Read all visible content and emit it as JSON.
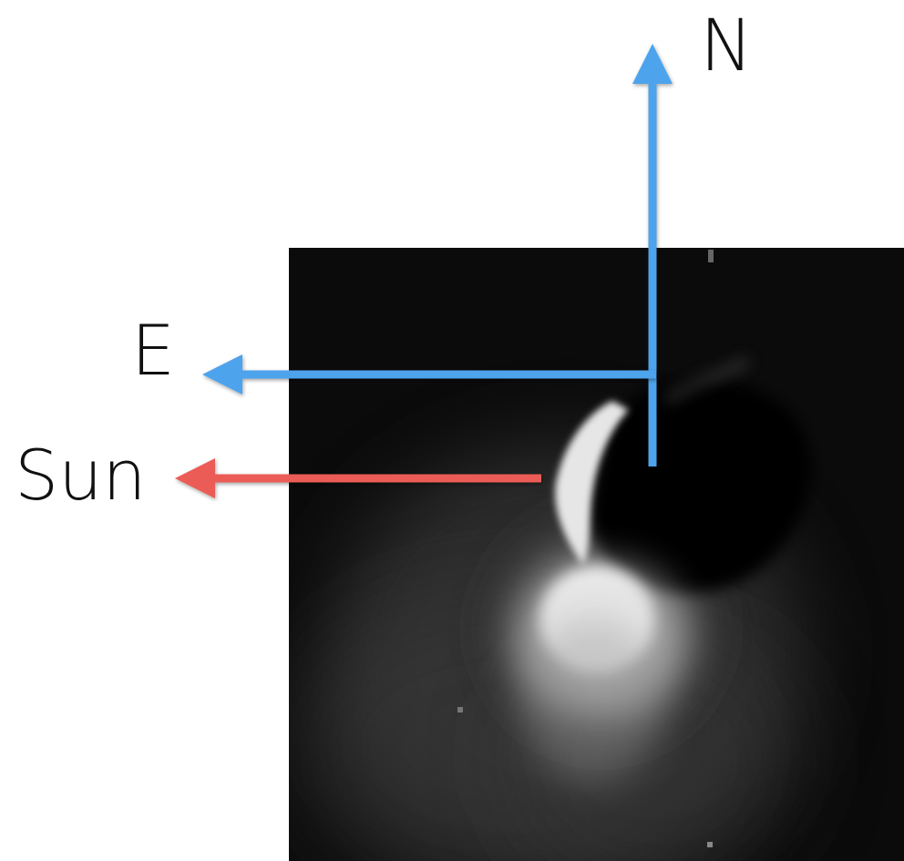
{
  "labels": {
    "north": "N",
    "east": "E",
    "sun": "Sun"
  },
  "colors": {
    "compass_arrow": "#4ea3ec",
    "sun_arrow": "#ec5b57",
    "background": "#ffffff",
    "image_dark": "#0a0a0a",
    "label_text": "#111111"
  },
  "icons": {
    "north": "arrow-up-icon",
    "east": "arrow-left-icon",
    "sun": "arrow-left-icon"
  }
}
